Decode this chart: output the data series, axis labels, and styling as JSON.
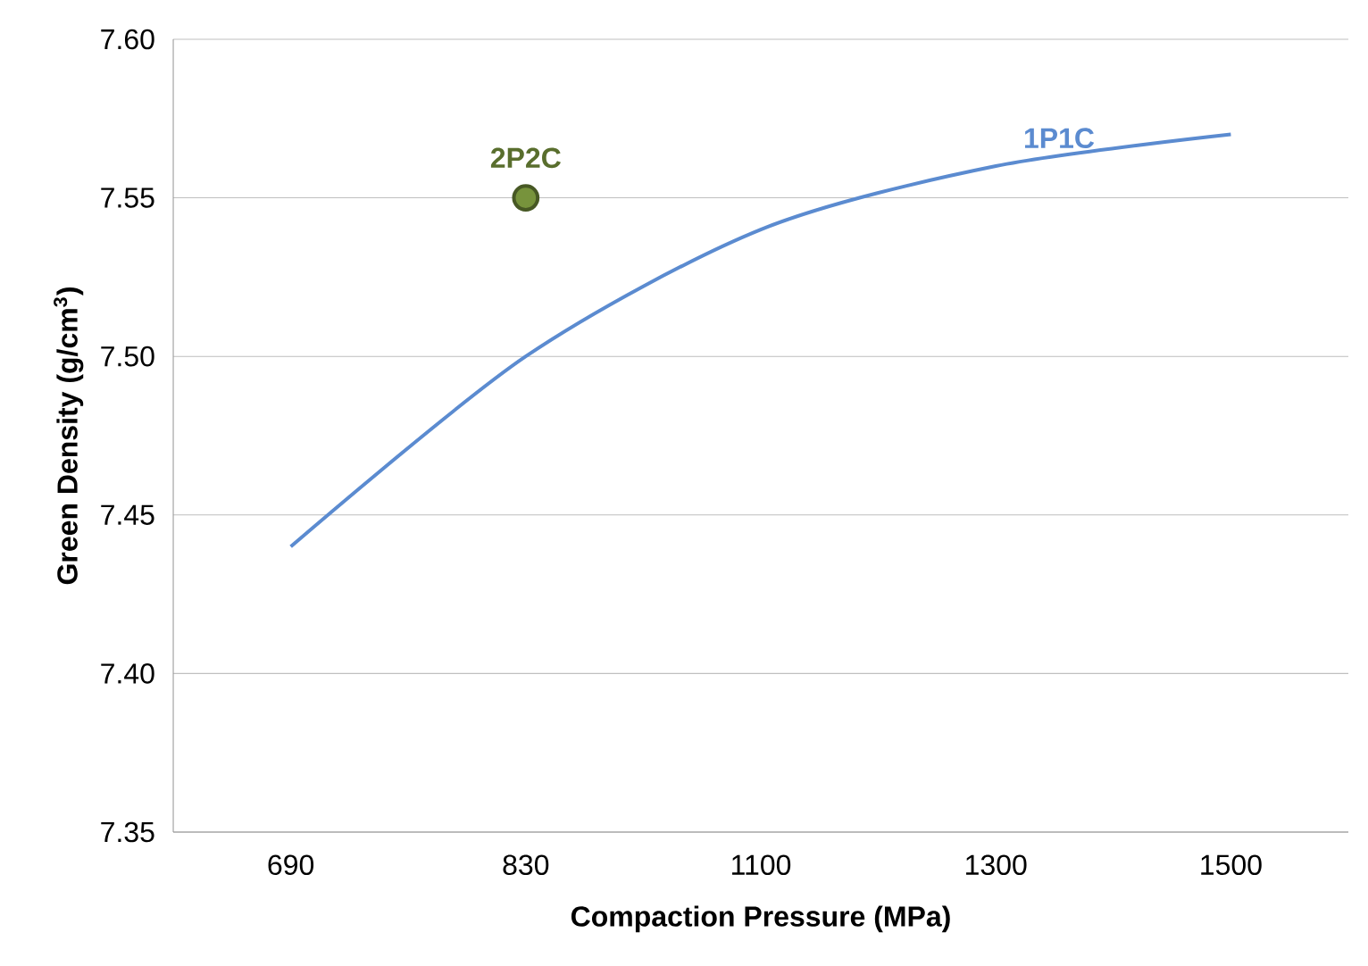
{
  "chart_data": {
    "type": "line",
    "xlabel": "Compaction Pressure (MPa)",
    "ylabel": "Green Density   (g/cm$^{3}$)",
    "categories": [
      "690",
      "830",
      "1100",
      "1300",
      "1500"
    ],
    "series": [
      {
        "name": "1P1C",
        "color": "#5b8bd0",
        "values": [
          7.44,
          7.5,
          7.54,
          7.56,
          7.57
        ]
      },
      {
        "name": "2P2C",
        "type": "scatter",
        "color": "#77933c",
        "x": [
          "830"
        ],
        "values": [
          7.55
        ]
      }
    ],
    "ylim": [
      7.35,
      7.6
    ],
    "yticks": [
      {
        "value": 7.35,
        "label": "7.35"
      },
      {
        "value": 7.4,
        "label": "7.40"
      },
      {
        "value": 7.45,
        "label": "7.45"
      },
      {
        "value": 7.5,
        "label": "7.50"
      },
      {
        "value": 7.55,
        "label": "7.55"
      },
      {
        "value": 7.6,
        "label": "7.60"
      }
    ],
    "grid": "y"
  }
}
